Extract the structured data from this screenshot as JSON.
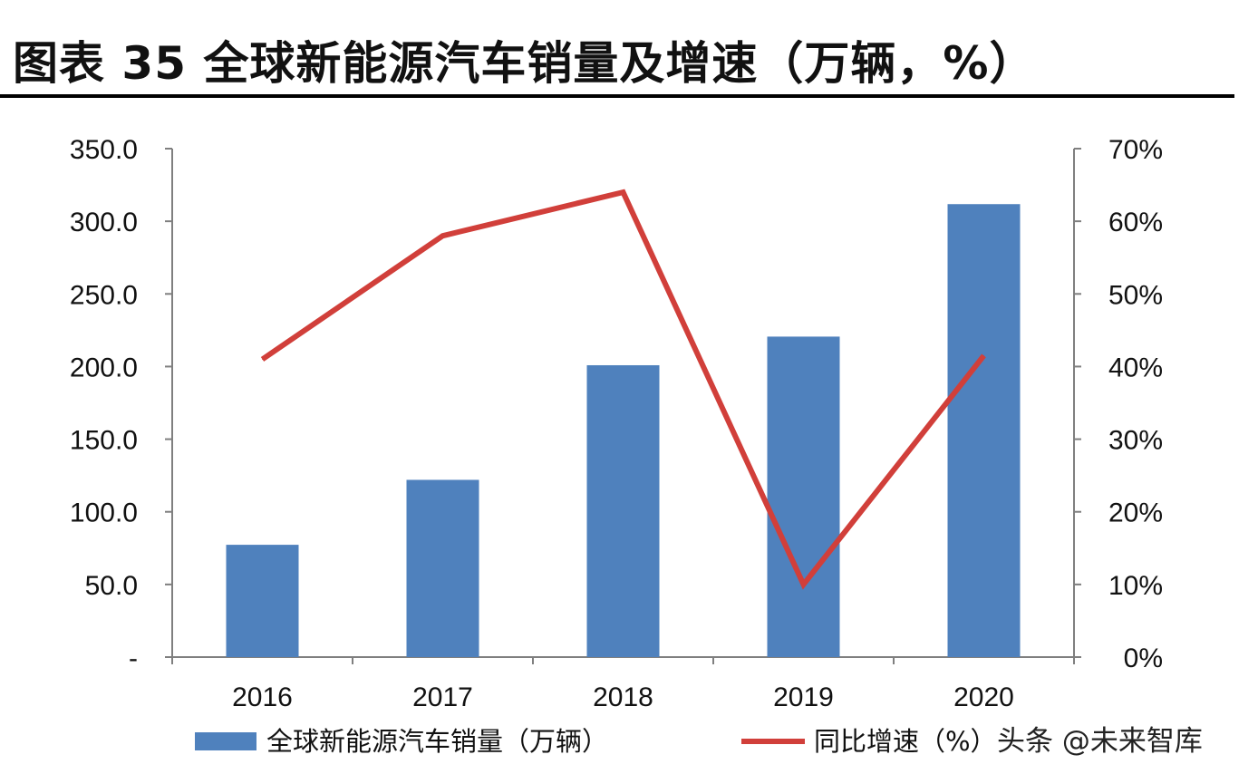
{
  "title": "图表 35 全球新能源汽车销量及增速（万辆，%）",
  "colors": {
    "bar": "#4f81bd",
    "line": "#d13f3a",
    "axis": "#7f7f7f"
  },
  "watermark": "头条 @未来智库",
  "chart_data": {
    "type": "bar",
    "categories": [
      "2016",
      "2017",
      "2018",
      "2019",
      "2020"
    ],
    "series": [
      {
        "name": "全球新能源汽车销量（万辆）",
        "type": "bar",
        "axis": "left",
        "values": [
          77.3,
          122.0,
          200.9,
          220.6,
          311.8
        ]
      },
      {
        "name": "同比增速（%）",
        "type": "line",
        "axis": "right",
        "values": [
          41.0,
          58.0,
          64.0,
          10.0,
          41.5
        ]
      }
    ],
    "y_left": {
      "min": 0,
      "max": 350,
      "step": 50,
      "tick_labels": [
        "-",
        "50.0",
        "100.0",
        "150.0",
        "200.0",
        "250.0",
        "300.0",
        "350.0"
      ]
    },
    "y_right": {
      "min": 0,
      "max": 70,
      "step": 10,
      "tick_labels": [
        "0%",
        "10%",
        "20%",
        "30%",
        "40%",
        "50%",
        "60%",
        "70%"
      ]
    },
    "grid": false,
    "legend_position": "bottom"
  }
}
